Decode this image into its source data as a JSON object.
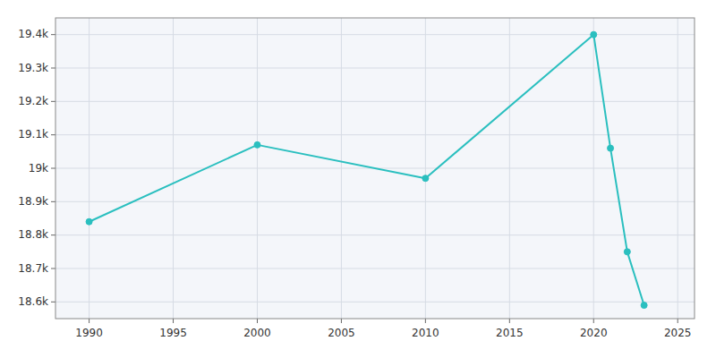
{
  "chart_data": {
    "type": "line",
    "x": [
      1990,
      2000,
      2010,
      2020,
      2021,
      2022,
      2023
    ],
    "values": [
      18840,
      19070,
      18970,
      19400,
      19060,
      18750,
      18590
    ],
    "color": "#2abfbf",
    "marker": "circle",
    "xlim": [
      1988,
      2026
    ],
    "ylim": [
      18550,
      19450
    ],
    "xticks": [
      1990,
      1995,
      2000,
      2005,
      2010,
      2015,
      2020,
      2025
    ],
    "yticks": [
      {
        "value": 18600,
        "label": "18.6k"
      },
      {
        "value": 18700,
        "label": "18.7k"
      },
      {
        "value": 18800,
        "label": "18.8k"
      },
      {
        "value": 18900,
        "label": "18.9k"
      },
      {
        "value": 19000,
        "label": "19k"
      },
      {
        "value": 19100,
        "label": "19.1k"
      },
      {
        "value": 19200,
        "label": "19.2k"
      },
      {
        "value": 19300,
        "label": "19.3k"
      },
      {
        "value": 19400,
        "label": "19.4k"
      }
    ],
    "grid": true
  }
}
